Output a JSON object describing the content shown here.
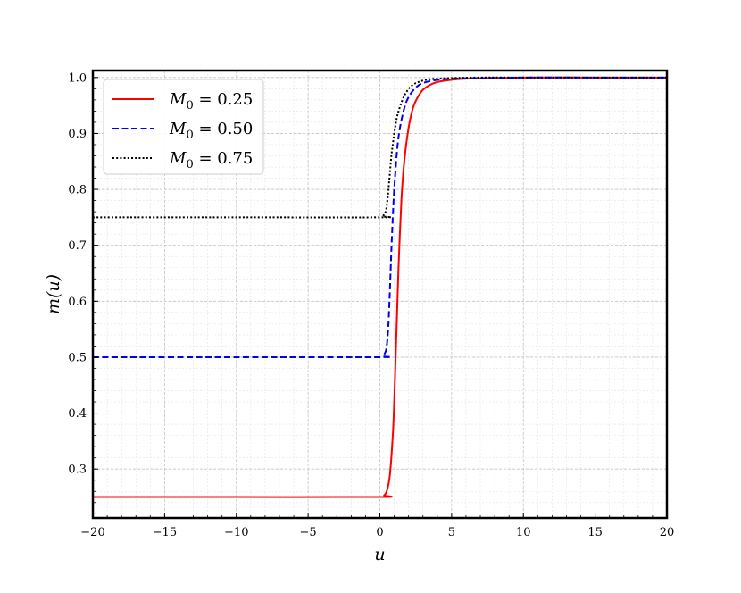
{
  "chart_data": {
    "type": "line",
    "xlabel": "u",
    "ylabel": "m(u)",
    "xlim": [
      -20,
      20
    ],
    "ylim": [
      0.2125,
      1.0125
    ],
    "x_ticks": [
      -20,
      -15,
      -10,
      -5,
      0,
      5,
      10,
      15,
      20
    ],
    "x_tick_labels": [
      "−20",
      "−15",
      "−10",
      "−5",
      "0",
      "5",
      "10",
      "15",
      "20"
    ],
    "y_ticks": [
      0.3,
      0.4,
      0.5,
      0.6,
      0.7,
      0.8,
      0.9,
      1.0
    ],
    "y_tick_labels": [
      "0.3",
      "0.4",
      "0.5",
      "0.6",
      "0.7",
      "0.8",
      "0.9",
      "1.0"
    ],
    "grid": true,
    "legend_position": "top-left",
    "series": [
      {
        "name": "M0 = 0.25",
        "legend_label": {
          "var": "M",
          "sub": "0",
          "rest": " = 0.25"
        },
        "color": "#ff0000",
        "dash": "solid",
        "x": [
          -20,
          -10,
          0,
          0.3,
          0.5,
          0.7,
          0.9,
          1.0,
          1.1,
          1.2,
          1.3,
          1.5,
          1.7,
          2.0,
          2.3,
          2.6,
          3.0,
          3.5,
          4.0,
          5.0,
          6.0,
          8.0,
          10.0,
          15.0,
          20.0
        ],
        "y": [
          0.25,
          0.25,
          0.25,
          0.253,
          0.262,
          0.29,
          0.36,
          0.42,
          0.5,
          0.58,
          0.66,
          0.78,
          0.85,
          0.91,
          0.945,
          0.963,
          0.978,
          0.987,
          0.992,
          0.996,
          0.998,
          0.999,
          1.0,
          1.0,
          1.0
        ]
      },
      {
        "name": "M0 = 0.50",
        "legend_label": {
          "var": "M",
          "sub": "0",
          "rest": " = 0.50"
        },
        "color": "#0000ee",
        "dash": "dashed",
        "x": [
          -20,
          -10,
          0,
          0.2,
          0.4,
          0.5,
          0.6,
          0.7,
          0.8,
          0.9,
          1.0,
          1.2,
          1.4,
          1.7,
          2.0,
          2.5,
          3.0,
          4.0,
          5.0,
          7.0,
          10.0,
          15.0,
          20.0
        ],
        "y": [
          0.5,
          0.5,
          0.5,
          0.502,
          0.51,
          0.525,
          0.56,
          0.62,
          0.69,
          0.75,
          0.8,
          0.87,
          0.91,
          0.945,
          0.965,
          0.982,
          0.99,
          0.996,
          0.998,
          0.999,
          1.0,
          1.0,
          1.0
        ]
      },
      {
        "name": "M0 = 0.75",
        "legend_label": {
          "var": "M",
          "sub": "0",
          "rest": " = 0.75"
        },
        "color": "#000000",
        "dash": "dotted",
        "x": [
          -20,
          -10,
          0,
          0.2,
          0.4,
          0.5,
          0.6,
          0.7,
          0.8,
          0.9,
          1.0,
          1.2,
          1.5,
          1.8,
          2.2,
          2.7,
          3.5,
          5.0,
          7.0,
          10.0,
          15.0,
          20.0
        ],
        "y": [
          0.75,
          0.75,
          0.75,
          0.752,
          0.76,
          0.775,
          0.8,
          0.83,
          0.86,
          0.88,
          0.9,
          0.93,
          0.955,
          0.972,
          0.985,
          0.992,
          0.997,
          0.999,
          1.0,
          1.0,
          1.0,
          1.0
        ]
      }
    ]
  }
}
